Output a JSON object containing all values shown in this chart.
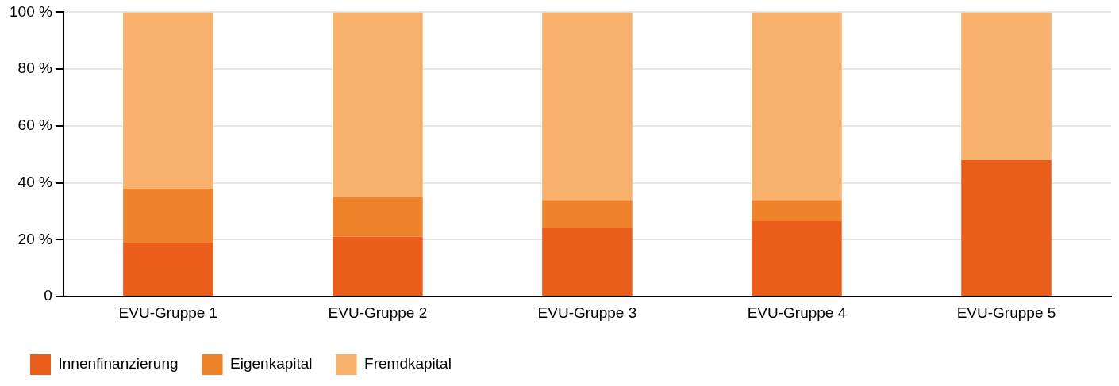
{
  "chart_data": {
    "type": "bar",
    "stacked": true,
    "categories": [
      "EVU-Gruppe 1",
      "EVU-Gruppe 2",
      "EVU-Gruppe 3",
      "EVU-Gruppe 4",
      "EVU-Gruppe 5"
    ],
    "series": [
      {
        "name": "Innenfinanzierung",
        "color": "#ea5d1b",
        "values": [
          19,
          21,
          24,
          26.5,
          48
        ]
      },
      {
        "name": "Eigenkapital",
        "color": "#ef832c",
        "values": [
          19,
          14,
          10,
          7.5,
          0
        ]
      },
      {
        "name": "Fremdkapital",
        "color": "#f8b06d",
        "values": [
          62,
          65,
          66,
          66,
          52
        ]
      }
    ],
    "ylim": [
      0,
      100
    ],
    "yticks": [
      0,
      {
        "value": 20,
        "label": "20 %"
      },
      {
        "value": 40,
        "label": "40 %"
      },
      {
        "value": 60,
        "label": "60 %"
      },
      {
        "value": 80,
        "label": "80 %"
      },
      {
        "value": 100,
        "label": "100 %"
      }
    ],
    "grid": "y",
    "legend": "bottom left"
  }
}
